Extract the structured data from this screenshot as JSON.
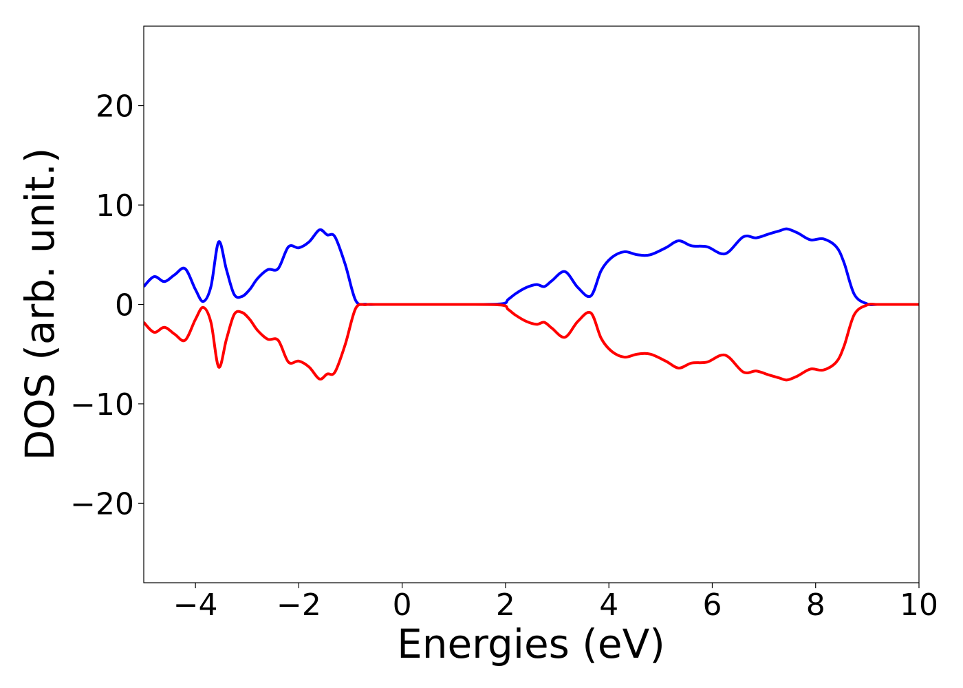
{
  "chart_data": {
    "type": "line",
    "title": "",
    "xlabel": "Energies (eV)",
    "ylabel": "DOS (arb. unit.)",
    "xlim": [
      -5,
      10
    ],
    "ylim": [
      -28,
      28
    ],
    "xticks": [
      -4,
      -2,
      0,
      2,
      4,
      6,
      8,
      10
    ],
    "yticks": [
      -20,
      -10,
      0,
      10,
      20
    ],
    "xtick_labels": [
      "−4",
      "−2",
      "0",
      "2",
      "4",
      "6",
      "8",
      "10"
    ],
    "ytick_labels": [
      "−20",
      "−10",
      "0",
      "10",
      "20"
    ],
    "grid": false,
    "legend": "none",
    "colors": {
      "up": "#0000ff",
      "down": "#ff0000"
    },
    "x": [
      -5.0,
      -4.8,
      -4.6,
      -4.4,
      -4.2,
      -4.0,
      -3.85,
      -3.7,
      -3.55,
      -3.4,
      -3.25,
      -3.1,
      -2.95,
      -2.8,
      -2.6,
      -2.4,
      -2.2,
      -2.0,
      -1.8,
      -1.6,
      -1.45,
      -1.3,
      -1.1,
      -0.9,
      -0.7,
      -0.5,
      0.0,
      1.0,
      1.9,
      2.05,
      2.2,
      2.4,
      2.6,
      2.75,
      2.9,
      3.15,
      3.4,
      3.65,
      3.85,
      4.05,
      4.3,
      4.55,
      4.8,
      5.1,
      5.35,
      5.6,
      5.9,
      6.25,
      6.6,
      6.85,
      7.1,
      7.3,
      7.45,
      7.65,
      7.9,
      8.15,
      8.4,
      8.55,
      8.75,
      9.0,
      9.2,
      9.5,
      10.0
    ],
    "series": [
      {
        "values": [
          1.8,
          2.8,
          2.3,
          3.0,
          3.6,
          1.5,
          0.3,
          1.8,
          6.3,
          3.5,
          1.0,
          0.8,
          1.5,
          2.6,
          3.5,
          3.6,
          5.8,
          5.7,
          6.3,
          7.5,
          7.0,
          6.8,
          4.0,
          0.4,
          0.02,
          0.0,
          0.0,
          0.0,
          0.05,
          0.5,
          1.1,
          1.7,
          2.0,
          1.8,
          2.4,
          3.3,
          1.7,
          0.85,
          3.4,
          4.7,
          5.3,
          5.0,
          5.0,
          5.7,
          6.4,
          5.9,
          5.8,
          5.1,
          6.8,
          6.7,
          7.1,
          7.4,
          7.6,
          7.2,
          6.5,
          6.6,
          5.8,
          4.2,
          1.0,
          0.05,
          0.0,
          0.0,
          0.0
        ]
      },
      {
        "values": [
          -1.8,
          -2.8,
          -2.3,
          -3.0,
          -3.6,
          -1.5,
          -0.3,
          -1.8,
          -6.3,
          -3.5,
          -1.0,
          -0.8,
          -1.5,
          -2.6,
          -3.5,
          -3.6,
          -5.8,
          -5.7,
          -6.3,
          -7.5,
          -7.0,
          -6.8,
          -4.0,
          -0.4,
          -0.02,
          0.0,
          0.0,
          0.0,
          -0.05,
          -0.5,
          -1.1,
          -1.7,
          -2.0,
          -1.8,
          -2.4,
          -3.3,
          -1.7,
          -0.85,
          -3.4,
          -4.7,
          -5.3,
          -5.0,
          -5.0,
          -5.7,
          -6.4,
          -5.9,
          -5.8,
          -5.1,
          -6.8,
          -6.7,
          -7.1,
          -7.4,
          -7.6,
          -7.2,
          -6.5,
          -6.6,
          -5.8,
          -4.2,
          -1.0,
          -0.05,
          0.0,
          0.0,
          0.0
        ]
      }
    ]
  }
}
